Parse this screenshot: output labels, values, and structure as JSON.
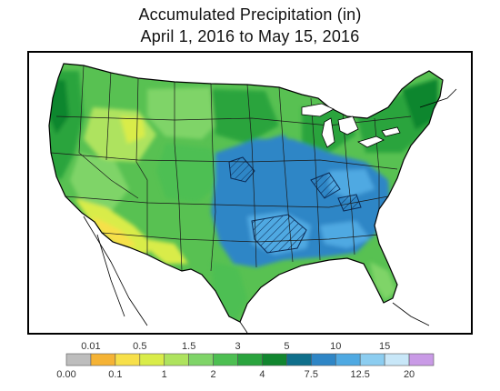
{
  "header": {
    "title_line1": "Accumulated Precipitation (in)",
    "title_line2": "April 1, 2016 to May 15, 2016"
  },
  "legend": {
    "bins": [
      {
        "upper": "0.00",
        "color": "#bdbdbd"
      },
      {
        "upper": "0.01",
        "color": "#f5b335"
      },
      {
        "upper": "0.1",
        "color": "#f7e04a"
      },
      {
        "upper": "0.5",
        "color": "#d9ec49"
      },
      {
        "upper": "1",
        "color": "#aee35e"
      },
      {
        "upper": "1.5",
        "color": "#7fd468"
      },
      {
        "upper": "2",
        "color": "#4dbf52"
      },
      {
        "upper": "3",
        "color": "#2aa43e"
      },
      {
        "upper": "4",
        "color": "#11862f"
      },
      {
        "upper": "5",
        "color": "#0f6f8b"
      },
      {
        "upper": "7.5",
        "color": "#2f86c6"
      },
      {
        "upper": "10",
        "color": "#4fa9e2"
      },
      {
        "upper": "12.5",
        "color": "#8ccdf0"
      },
      {
        "upper": "15",
        "color": "#c8e7f8"
      },
      {
        "upper": "20",
        "color": "#c99ae6"
      }
    ],
    "labels_top": [
      "0.01",
      "0.5",
      "1.5",
      "3",
      "5",
      "10",
      "15"
    ],
    "labels_bottom": [
      "0.00",
      "0.1",
      "1",
      "2",
      "4",
      "7.5",
      "12.5",
      "20"
    ]
  }
}
